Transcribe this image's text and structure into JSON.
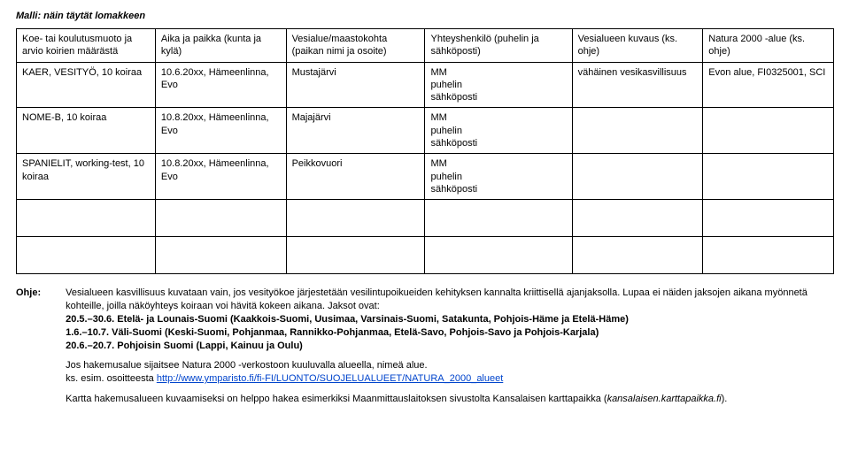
{
  "header": "Malli: näin täytät lomakkeen",
  "columns": [
    "Koe- tai koulutusmuoto ja arvio koirien määrästä",
    "Aika ja paikka (kunta ja kylä)",
    "Vesialue/maastokohta (paikan nimi ja osoite)",
    "Yhteyshenkilö (puhelin ja sähköposti)",
    "Vesialueen kuvaus (ks. ohje)",
    "Natura 2000 -alue (ks. ohje)"
  ],
  "rows": [
    {
      "c0": "KAER, VESITYÖ, 10 koiraa",
      "c1": "10.6.20xx, Hämeenlinna, Evo",
      "c2": "Mustajärvi",
      "c3": "MM\npuhelin\nsähköposti",
      "c4": "vähäinen vesikasvillisuus",
      "c5": "Evon alue, FI0325001, SCI"
    },
    {
      "c0": "NOME-B, 10 koiraa",
      "c1": "10.8.20xx, Hämeenlinna, Evo",
      "c2": "Majajärvi",
      "c3": "MM\npuhelin\nsähköposti",
      "c4": "",
      "c5": ""
    },
    {
      "c0": "SPANIELIT, working-test, 10 koiraa",
      "c1": "10.8.20xx, Hämeenlinna, Evo",
      "c2": "Peikkovuori",
      "c3": "MM\npuhelin\nsähköposti",
      "c4": "",
      "c5": ""
    }
  ],
  "ohje": {
    "label": "Ohje:",
    "para1_a": "Vesialueen kasvillisuus kuvataan vain, jos vesityökoe järjestetään vesilintupoikueiden kehityksen kannalta kriittisellä ajanjaksolla. Lupaa ei näiden jaksojen aikana myönnetä kohteille, joilla näköyhteys koiraan voi hävitä kokeen aikana. Jaksot ovat:",
    "line1": "20.5.–30.6. Etelä- ja Lounais-Suomi (Kaakkois-Suomi, Uusimaa, Varsinais-Suomi, Satakunta, Pohjois-Häme ja Etelä-Häme)",
    "line2": "1.6.–10.7. Väli-Suomi (Keski-Suomi, Pohjanmaa, Rannikko-Pohjanmaa, Etelä-Savo, Pohjois-Savo ja Pohjois-Karjala)",
    "line3": "20.6.–20.7. Pohjoisin Suomi (Lappi, Kainuu ja Oulu)",
    "para2_a": "Jos hakemusalue sijaitsee Natura 2000 -verkostoon kuuluvalla alueella, nimeä alue.",
    "para2_b": "ks. esim. osoitteesta ",
    "para2_link": "http://www.ymparisto.fi/fi-FI/LUONTO/SUOJELUALUEET/NATURA_2000_alueet",
    "para3_a": "Kartta hakemusalueen kuvaamiseksi on helppo hakea esimerkiksi Maanmittauslaitoksen sivustolta Kansalaisen karttapaikka (",
    "para3_i": "kansalaisen.karttapaikka.fi",
    "para3_b": ")."
  }
}
